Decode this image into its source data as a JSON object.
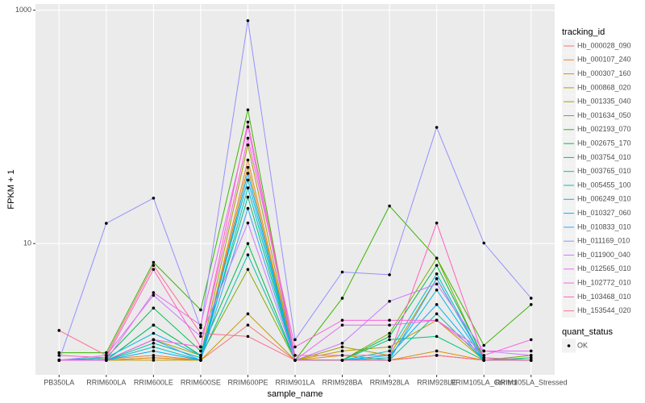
{
  "chart_data": {
    "type": "line",
    "log_y": true,
    "grid": true,
    "x_label": "sample_name",
    "y_label": "FPKM + 1",
    "legend_title": "tracking_id",
    "legend_position": "right",
    "point_legend_title": "quant_status",
    "point_legend_label": "OK",
    "point_color": "#000000",
    "categories": [
      "PB350LA",
      "RRIM600LA",
      "RRIM600LE",
      "RRIM600SE",
      "RRIM600PE",
      "RRIM901LA",
      "RRIM928BA",
      "RRIM928LA",
      "RRIM928LE",
      "RRIM105LA_Control",
      "RRIM105LA_Stressed"
    ],
    "ylim": [
      0.75,
      1130
    ],
    "yticks": [
      10,
      1000
    ],
    "series": [
      {
        "name": "Hb_000028_090",
        "color": "#F8766D",
        "values": [
          1,
          1,
          1.05,
          1,
          2,
          1,
          1,
          1,
          1.1,
          1,
          1
        ]
      },
      {
        "name": "Hb_000107_240",
        "color": "#EA8331",
        "values": [
          1,
          1.02,
          1.1,
          1,
          52,
          1,
          1,
          1,
          1.1,
          1,
          1
        ]
      },
      {
        "name": "Hb_000307_160",
        "color": "#D89000",
        "values": [
          1,
          1,
          1.05,
          1,
          45,
          1,
          1.1,
          1,
          1.2,
          1,
          1
        ]
      },
      {
        "name": "Hb_000868_020",
        "color": "#C09B00",
        "values": [
          1,
          1,
          1,
          1,
          2.5,
          1,
          1.2,
          1.3,
          2.2,
          1,
          1
        ]
      },
      {
        "name": "Hb_001335_040",
        "color": "#A3A500",
        "values": [
          1,
          1,
          1.5,
          1.1,
          70,
          1,
          1.3,
          1.1,
          5,
          1,
          1
        ]
      },
      {
        "name": "Hb_001634_050",
        "color": "#7CAE00",
        "values": [
          1,
          1,
          2,
          1.1,
          6,
          1,
          1,
          1.7,
          7.5,
          1,
          1.1
        ]
      },
      {
        "name": "Hb_002193_070",
        "color": "#39B600",
        "values": [
          1.16,
          1.16,
          6.9,
          2.7,
          140,
          1,
          3.4,
          21,
          7.5,
          1.34,
          3
        ]
      },
      {
        "name": "Hb_002675_170",
        "color": "#00BB4E",
        "values": [
          1,
          1.05,
          2.8,
          1.2,
          10,
          1,
          1,
          1.6,
          6.5,
          1.05,
          1
        ]
      },
      {
        "name": "Hb_003754_010",
        "color": "#00BF7D",
        "values": [
          1,
          1,
          2,
          1.1,
          25,
          1,
          1,
          1.5,
          1.6,
          1,
          1.05
        ]
      },
      {
        "name": "Hb_003765_010",
        "color": "#00C1A3",
        "values": [
          1,
          1,
          1.4,
          1.05,
          8,
          1,
          1,
          1,
          2.5,
          1,
          1
        ]
      },
      {
        "name": "Hb_005455_100",
        "color": "#00BFC4",
        "values": [
          1,
          1,
          1.3,
          1,
          30,
          1,
          1,
          1.2,
          5.5,
          1,
          1
        ]
      },
      {
        "name": "Hb_006249_010",
        "color": "#00BAE0",
        "values": [
          1,
          1.05,
          1.7,
          1.1,
          35,
          1,
          1,
          1.05,
          4,
          1,
          1
        ]
      },
      {
        "name": "Hb_010327_060",
        "color": "#00B0F6",
        "values": [
          1,
          1,
          1.2,
          1,
          40,
          1,
          1,
          1.1,
          3,
          1,
          1
        ]
      },
      {
        "name": "Hb_010833_010",
        "color": "#35A2FF",
        "values": [
          1,
          1,
          1.5,
          1,
          20,
          1,
          1,
          1,
          5,
          1,
          1
        ]
      },
      {
        "name": "Hb_011169_010",
        "color": "#9590FF",
        "values": [
          1,
          14.9,
          24.5,
          1.9,
          814,
          1.5,
          5.7,
          5.4,
          99,
          10.1,
          3.4
        ]
      },
      {
        "name": "Hb_011900_040",
        "color": "#C77CFF",
        "values": [
          1,
          1.1,
          3.6,
          1.6,
          15,
          1,
          1.4,
          3.2,
          4.5,
          1.2,
          1.1
        ]
      },
      {
        "name": "Hb_012565_010",
        "color": "#E76BF3",
        "values": [
          1,
          1,
          3.8,
          2,
          100,
          1,
          2,
          2,
          2.2,
          1.2,
          1.2
        ]
      },
      {
        "name": "Hb_102772_010",
        "color": "#FA62DB",
        "values": [
          1,
          1,
          1.5,
          1.3,
          80,
          1.3,
          2.2,
          2.2,
          2.2,
          1.1,
          1.5
        ]
      },
      {
        "name": "Hb_103468_010",
        "color": "#FF62BC",
        "values": [
          1.1,
          1.05,
          6,
          1.3,
          110,
          1.1,
          1.1,
          1.1,
          15,
          1.05,
          1
        ]
      },
      {
        "name": "Hb_153544_020",
        "color": "#FF6C91",
        "values": [
          1.8,
          1.1,
          6.5,
          1.7,
          1.6,
          1,
          1,
          1,
          1.1,
          1,
          1
        ]
      }
    ]
  }
}
